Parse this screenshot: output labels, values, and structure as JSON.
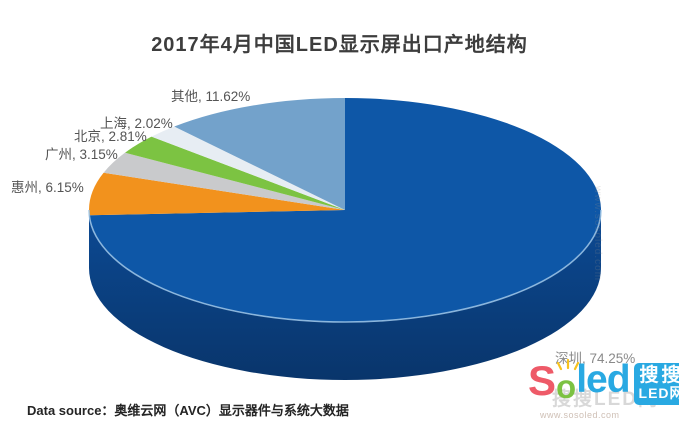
{
  "title": "2017年4月中国LED显示屏出口产地结构",
  "footer": {
    "data_source": "Data source：奥维云网（AVC）显示器件与系统大数据"
  },
  "chart_data": {
    "type": "pie",
    "style": "3d",
    "title": "2017年4月中国LED显示屏出口产地结构",
    "categories": [
      "深圳",
      "惠州",
      "广州",
      "北京",
      "上海",
      "其他"
    ],
    "values": [
      74.25,
      6.15,
      3.15,
      2.81,
      2.02,
      11.62
    ],
    "unit": "%",
    "colors": [
      "#0E57A7",
      "#F2921D",
      "#C9CACC",
      "#7CC342",
      "#E7EDF3",
      "#73A2CB"
    ],
    "side_colors": [
      "#0C4A94",
      "#09356B"
    ],
    "rim_highlight_color": "#9EC6E8",
    "start_angle_deg": 0,
    "direction": "clockwise",
    "legend_position": "none",
    "display_labels": [
      "深圳, 74.25%",
      "惠州, 6.15%",
      "广州, 3.15%",
      "北京, 2.81%",
      "上海, 2.02%",
      "其他, 11.62%"
    ]
  },
  "watermark": {
    "brand_s": "S",
    "brand_o": "o",
    "brand_led": "led",
    "badge_top": "搜搜",
    "badge_bottom": "LED网",
    "ghost": "搜搜LED网",
    "url": "www.sosoled.com",
    "side_text": "www.sosoled.com",
    "colors": {
      "s": "#EE5A68",
      "o": "#7CC242",
      "led": "#29A9E2",
      "badge_bg": "#29A9E2",
      "rays": "#F7C31E"
    }
  }
}
